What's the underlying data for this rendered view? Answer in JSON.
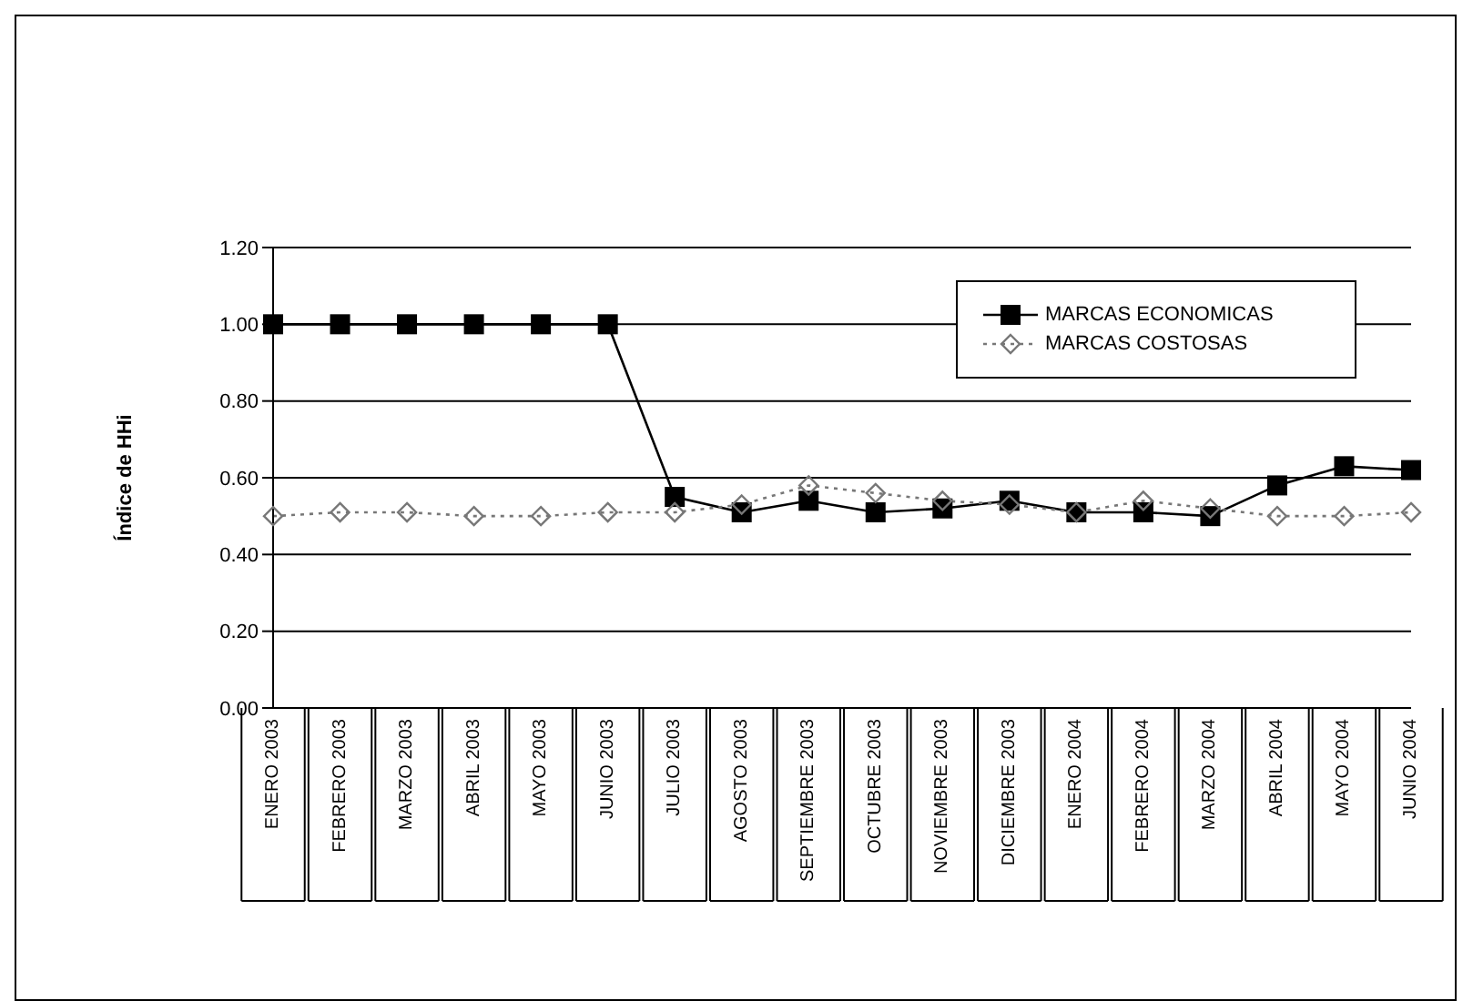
{
  "chart_data": {
    "type": "line",
    "ylabel": "Índice de HHi",
    "categories": [
      "ENERO 2003",
      "FEBRERO 2003",
      "MARZO 2003",
      "ABRIL 2003",
      "MAYO 2003",
      "JUNIO 2003",
      "JULIO 2003",
      "AGOSTO 2003",
      "SEPTIEMBRE 2003",
      "OCTUBRE 2003",
      "NOVIEMBRE 2003",
      "DICIEMBRE 2003",
      "ENERO 2004",
      "FEBRERO 2004",
      "MARZO 2004",
      "ABRIL 2004",
      "MAYO 2004",
      "JUNIO 2004"
    ],
    "series": [
      {
        "name": "MARCAS ECONOMICAS",
        "color": "#000000",
        "marker": "square",
        "line_style": "solid",
        "values": [
          1.0,
          1.0,
          1.0,
          1.0,
          1.0,
          1.0,
          0.55,
          0.51,
          0.54,
          0.51,
          0.52,
          0.54,
          0.51,
          0.51,
          0.5,
          0.58,
          0.63,
          0.62
        ]
      },
      {
        "name": "MARCAS COSTOSAS",
        "color": "#777777",
        "marker": "diamond",
        "line_style": "dotted",
        "values": [
          0.5,
          0.51,
          0.51,
          0.5,
          0.5,
          0.51,
          0.51,
          0.53,
          0.58,
          0.56,
          0.54,
          0.53,
          0.51,
          0.54,
          0.52,
          0.5,
          0.5,
          0.51
        ]
      }
    ],
    "ylim": [
      0,
      1.2
    ],
    "yticks": [
      {
        "value": 0,
        "label": "0.00"
      },
      {
        "value": 0.2,
        "label": "0.20"
      },
      {
        "value": 0.4,
        "label": "0.40"
      },
      {
        "value": 0.6,
        "label": "0.60"
      },
      {
        "value": 0.8,
        "label": "0.80"
      },
      {
        "value": 1.0,
        "label": "1.00"
      },
      {
        "value": 1.2,
        "label": "1.20"
      }
    ],
    "grid": "y",
    "legend": "top right"
  }
}
